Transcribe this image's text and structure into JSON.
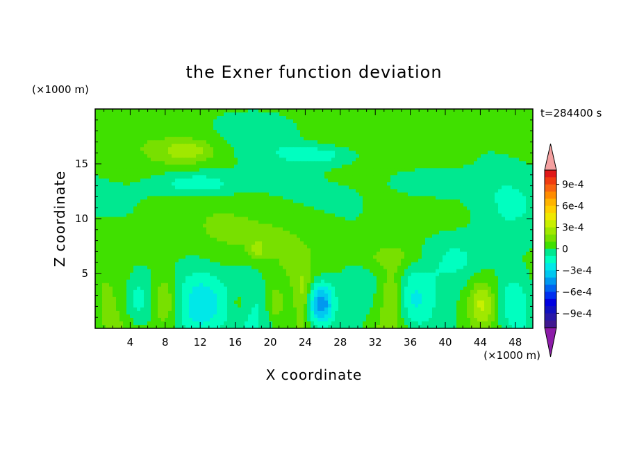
{
  "chart_data": {
    "type": "heatmap",
    "title": "the Exner function deviation",
    "time_label": "t=284400 s",
    "xlabel": "X coordinate",
    "ylabel": "Z coordinate",
    "x_unit": "(×1000 m)",
    "y_unit": "(×1000 m)",
    "xlim": [
      0,
      50
    ],
    "ylim": [
      0,
      20
    ],
    "x_ticks": [
      4,
      8,
      12,
      16,
      20,
      24,
      28,
      32,
      36,
      40,
      44,
      48
    ],
    "y_ticks": [
      5,
      10,
      15
    ],
    "colorbar": {
      "labels": [
        "9e-4",
        "6e-4",
        "3e-4",
        "0",
        "−3e-4",
        "−6e-4",
        "−9e-4"
      ],
      "label_values": [
        0.0009,
        0.0006,
        0.0003,
        0,
        -0.0003,
        -0.0006,
        -0.0009
      ],
      "levels": [
        0.0011,
        0.001,
        0.0009,
        0.0008,
        0.0007,
        0.0006,
        0.0005,
        0.0004,
        0.0003,
        0.0002,
        0.0001,
        0,
        -0.0001,
        -0.0002,
        -0.0003,
        -0.0004,
        -0.0005,
        -0.0006,
        -0.0007,
        -0.0008,
        -0.0009,
        -0.001,
        -0.0011
      ],
      "colors": [
        "#e01818",
        "#f03c10",
        "#f86410",
        "#ff8c00",
        "#ffb400",
        "#ffd000",
        "#f0e800",
        "#c8f000",
        "#a0e800",
        "#78e000",
        "#40e000",
        "#00e890",
        "#00ffc0",
        "#00e8e8",
        "#00c8f0",
        "#0098f0",
        "#0064f0",
        "#0030f0",
        "#0000e0",
        "#1010c0",
        "#2818a8",
        "#401890"
      ],
      "over_color": "#f4a0a0",
      "under_color": "#8c1ca8"
    },
    "field": {
      "background": 5e-05,
      "blobs": [
        {
          "x": 25.8,
          "z": 2.2,
          "sx": 1.0,
          "sz": 1.4,
          "a": -0.00055
        },
        {
          "x": 12.3,
          "z": 1.8,
          "sx": 2.0,
          "sz": 2.4,
          "a": -0.00035
        },
        {
          "x": 4.8,
          "z": 2.5,
          "sx": 1.2,
          "sz": 1.8,
          "a": -0.00022
        },
        {
          "x": 36.2,
          "z": 2.4,
          "sx": 1.6,
          "sz": 2.0,
          "a": -0.00025
        },
        {
          "x": 47.8,
          "z": 2.5,
          "sx": 1.6,
          "sz": 2.0,
          "a": -0.00022
        },
        {
          "x": 17.5,
          "z": 3.0,
          "sx": 1.6,
          "sz": 2.4,
          "a": -0.00012
        },
        {
          "x": 30.0,
          "z": 3.0,
          "sx": 2.2,
          "sz": 2.4,
          "a": -0.00012
        },
        {
          "x": 41.5,
          "z": 6.5,
          "sx": 2.8,
          "sz": 1.8,
          "a": -0.00018
        },
        {
          "x": 47.0,
          "z": 10.0,
          "sx": 2.6,
          "sz": 2.8,
          "a": -0.00012
        },
        {
          "x": 11.5,
          "z": 13.2,
          "sx": 3.4,
          "sz": 0.8,
          "a": -0.00022
        },
        {
          "x": 25.5,
          "z": 15.8,
          "sx": 3.2,
          "sz": 0.7,
          "a": -0.0002
        },
        {
          "x": 20.0,
          "z": 18.0,
          "sx": 3.0,
          "sz": 1.5,
          "a": -0.00012
        },
        {
          "x": 38.0,
          "z": 14.0,
          "sx": 4.0,
          "sz": 1.5,
          "a": -0.00012
        },
        {
          "x": 8.0,
          "z": 2.5,
          "sx": 0.9,
          "sz": 1.8,
          "a": 0.00018
        },
        {
          "x": 16.5,
          "z": 2.3,
          "sx": 0.9,
          "sz": 1.0,
          "a": 0.00015
        },
        {
          "x": 34.0,
          "z": 3.0,
          "sx": 1.0,
          "sz": 2.0,
          "a": 0.0002
        },
        {
          "x": 44.2,
          "z": 2.2,
          "sx": 1.1,
          "sz": 1.4,
          "a": 0.00028
        },
        {
          "x": 20.5,
          "z": 2.2,
          "sx": 0.6,
          "sz": 1.0,
          "a": 0.00015
        },
        {
          "x": 23.8,
          "z": 3.5,
          "sx": 0.5,
          "sz": 1.6,
          "a": 0.00015
        },
        {
          "x": 10.5,
          "z": 16.2,
          "sx": 2.2,
          "sz": 0.7,
          "a": 0.00022
        },
        {
          "x": 39.0,
          "z": 15.3,
          "sx": 3.0,
          "sz": 0.8,
          "a": 0.00012
        },
        {
          "x": 18.5,
          "z": 7.2,
          "sx": 0.7,
          "sz": 0.6,
          "a": 0.00018
        },
        {
          "x": 33.5,
          "z": 6.5,
          "sx": 3.0,
          "sz": 0.8,
          "a": 0.00012
        },
        {
          "x": 17.0,
          "z": 9.0,
          "sx": 9.0,
          "sz": 2.0,
          "a": 5e-05
        }
      ]
    }
  }
}
